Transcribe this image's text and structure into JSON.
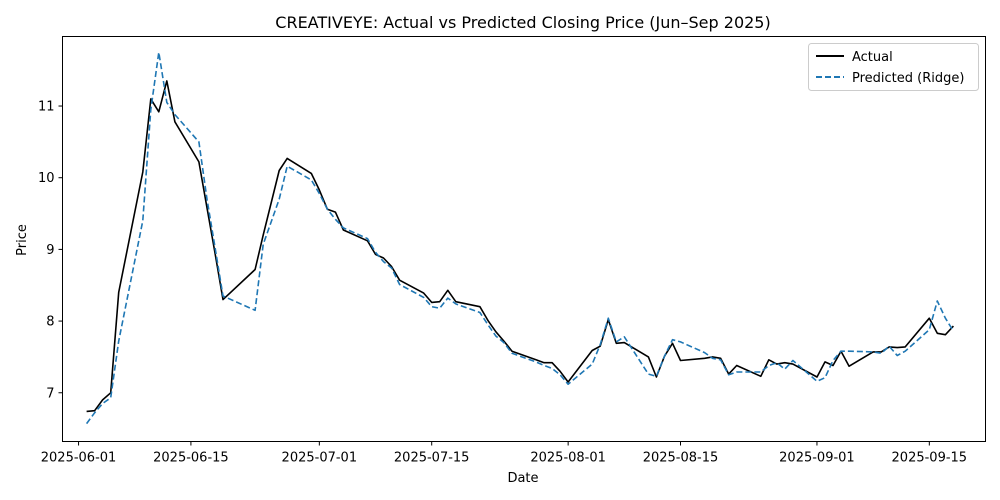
{
  "chart_data": {
    "type": "line",
    "title": "CREATIVEYE: Actual vs Predicted Closing Price (Jun–Sep 2025)",
    "xlabel": "Date",
    "ylabel": "Price",
    "x_axis_type": "date",
    "xlim": [
      "2025-05-30",
      "2025-09-22"
    ],
    "ylim": [
      6.32,
      11.97
    ],
    "x_ticks": [
      "2025-06-01",
      "2025-06-15",
      "2025-07-01",
      "2025-07-15",
      "2025-08-01",
      "2025-08-15",
      "2025-09-01",
      "2025-09-15"
    ],
    "y_ticks": [
      7,
      8,
      9,
      10,
      11
    ],
    "grid": false,
    "legend_position": "upper right",
    "series": [
      {
        "name": "Actual",
        "color": "#000000",
        "line_style": "solid",
        "points": [
          [
            "2025-06-02",
            6.74
          ],
          [
            "2025-06-03",
            6.75
          ],
          [
            "2025-06-04",
            6.9
          ],
          [
            "2025-06-05",
            7.0
          ],
          [
            "2025-06-06",
            8.4
          ],
          [
            "2025-06-09",
            10.08
          ],
          [
            "2025-06-10",
            11.1
          ],
          [
            "2025-06-11",
            10.92
          ],
          [
            "2025-06-12",
            11.35
          ],
          [
            "2025-06-13",
            10.78
          ],
          [
            "2025-06-16",
            10.22
          ],
          [
            "2025-06-17",
            9.58
          ],
          [
            "2025-06-18",
            8.95
          ],
          [
            "2025-06-19",
            8.3
          ],
          [
            "2025-06-23",
            8.72
          ],
          [
            "2025-06-24",
            9.2
          ],
          [
            "2025-06-26",
            10.1
          ],
          [
            "2025-06-27",
            10.27
          ],
          [
            "2025-06-30",
            10.06
          ],
          [
            "2025-07-01",
            9.83
          ],
          [
            "2025-07-02",
            9.56
          ],
          [
            "2025-07-03",
            9.52
          ],
          [
            "2025-07-04",
            9.27
          ],
          [
            "2025-07-07",
            9.12
          ],
          [
            "2025-07-08",
            8.93
          ],
          [
            "2025-07-09",
            8.88
          ],
          [
            "2025-07-10",
            8.76
          ],
          [
            "2025-07-11",
            8.57
          ],
          [
            "2025-07-14",
            8.39
          ],
          [
            "2025-07-15",
            8.26
          ],
          [
            "2025-07-16",
            8.27
          ],
          [
            "2025-07-17",
            8.43
          ],
          [
            "2025-07-18",
            8.27
          ],
          [
            "2025-07-21",
            8.2
          ],
          [
            "2025-07-22",
            8.01
          ],
          [
            "2025-07-23",
            7.85
          ],
          [
            "2025-07-24",
            7.72
          ],
          [
            "2025-07-25",
            7.58
          ],
          [
            "2025-07-28",
            7.46
          ],
          [
            "2025-07-29",
            7.42
          ],
          [
            "2025-07-30",
            7.42
          ],
          [
            "2025-07-31",
            7.3
          ],
          [
            "2025-08-01",
            7.15
          ],
          [
            "2025-08-04",
            7.59
          ],
          [
            "2025-08-05",
            7.65
          ],
          [
            "2025-08-06",
            8.02
          ],
          [
            "2025-08-07",
            7.69
          ],
          [
            "2025-08-08",
            7.7
          ],
          [
            "2025-08-11",
            7.5
          ],
          [
            "2025-08-12",
            7.22
          ],
          [
            "2025-08-13",
            7.51
          ],
          [
            "2025-08-14",
            7.69
          ],
          [
            "2025-08-15",
            7.45
          ],
          [
            "2025-08-18",
            7.48
          ],
          [
            "2025-08-19",
            7.5
          ],
          [
            "2025-08-20",
            7.48
          ],
          [
            "2025-08-21",
            7.26
          ],
          [
            "2025-08-22",
            7.38
          ],
          [
            "2025-08-25",
            7.23
          ],
          [
            "2025-08-26",
            7.46
          ],
          [
            "2025-08-27",
            7.4
          ],
          [
            "2025-08-28",
            7.42
          ],
          [
            "2025-08-29",
            7.4
          ],
          [
            "2025-09-01",
            7.22
          ],
          [
            "2025-09-02",
            7.43
          ],
          [
            "2025-09-03",
            7.38
          ],
          [
            "2025-09-04",
            7.58
          ],
          [
            "2025-09-05",
            7.37
          ],
          [
            "2025-09-08",
            7.57
          ],
          [
            "2025-09-09",
            7.57
          ],
          [
            "2025-09-10",
            7.64
          ],
          [
            "2025-09-11",
            7.63
          ],
          [
            "2025-09-12",
            7.64
          ],
          [
            "2025-09-15",
            8.04
          ],
          [
            "2025-09-16",
            7.83
          ],
          [
            "2025-09-17",
            7.81
          ],
          [
            "2025-09-18",
            7.93
          ]
        ]
      },
      {
        "name": "Predicted (Ridge)",
        "color": "#1f77b4",
        "line_style": "dashed",
        "points": [
          [
            "2025-06-02",
            6.57
          ],
          [
            "2025-06-03",
            6.72
          ],
          [
            "2025-06-04",
            6.85
          ],
          [
            "2025-06-05",
            6.93
          ],
          [
            "2025-06-06",
            7.72
          ],
          [
            "2025-06-09",
            9.4
          ],
          [
            "2025-06-10",
            10.95
          ],
          [
            "2025-06-11",
            11.75
          ],
          [
            "2025-06-12",
            11.05
          ],
          [
            "2025-06-13",
            10.88
          ],
          [
            "2025-06-16",
            10.5
          ],
          [
            "2025-06-17",
            9.7
          ],
          [
            "2025-06-18",
            9.03
          ],
          [
            "2025-06-19",
            8.35
          ],
          [
            "2025-06-23",
            8.15
          ],
          [
            "2025-06-24",
            9.07
          ],
          [
            "2025-06-26",
            9.7
          ],
          [
            "2025-06-27",
            10.16
          ],
          [
            "2025-06-30",
            9.97
          ],
          [
            "2025-07-01",
            9.78
          ],
          [
            "2025-07-02",
            9.56
          ],
          [
            "2025-07-03",
            9.42
          ],
          [
            "2025-07-04",
            9.3
          ],
          [
            "2025-07-07",
            9.15
          ],
          [
            "2025-07-08",
            8.96
          ],
          [
            "2025-07-09",
            8.83
          ],
          [
            "2025-07-10",
            8.74
          ],
          [
            "2025-07-11",
            8.51
          ],
          [
            "2025-07-14",
            8.33
          ],
          [
            "2025-07-15",
            8.2
          ],
          [
            "2025-07-16",
            8.18
          ],
          [
            "2025-07-17",
            8.32
          ],
          [
            "2025-07-18",
            8.24
          ],
          [
            "2025-07-21",
            8.12
          ],
          [
            "2025-07-22",
            7.95
          ],
          [
            "2025-07-23",
            7.79
          ],
          [
            "2025-07-24",
            7.7
          ],
          [
            "2025-07-25",
            7.55
          ],
          [
            "2025-07-28",
            7.43
          ],
          [
            "2025-07-29",
            7.38
          ],
          [
            "2025-07-30",
            7.34
          ],
          [
            "2025-07-31",
            7.25
          ],
          [
            "2025-08-01",
            7.12
          ],
          [
            "2025-08-04",
            7.4
          ],
          [
            "2025-08-05",
            7.67
          ],
          [
            "2025-08-06",
            8.04
          ],
          [
            "2025-08-07",
            7.71
          ],
          [
            "2025-08-08",
            7.78
          ],
          [
            "2025-08-11",
            7.26
          ],
          [
            "2025-08-12",
            7.23
          ],
          [
            "2025-08-13",
            7.51
          ],
          [
            "2025-08-14",
            7.74
          ],
          [
            "2025-08-15",
            7.71
          ],
          [
            "2025-08-18",
            7.56
          ],
          [
            "2025-08-19",
            7.48
          ],
          [
            "2025-08-20",
            7.46
          ],
          [
            "2025-08-21",
            7.25
          ],
          [
            "2025-08-22",
            7.29
          ],
          [
            "2025-08-25",
            7.29
          ],
          [
            "2025-08-26",
            7.38
          ],
          [
            "2025-08-27",
            7.42
          ],
          [
            "2025-08-28",
            7.33
          ],
          [
            "2025-08-29",
            7.45
          ],
          [
            "2025-09-01",
            7.16
          ],
          [
            "2025-09-02",
            7.21
          ],
          [
            "2025-09-03",
            7.45
          ],
          [
            "2025-09-04",
            7.58
          ],
          [
            "2025-09-05",
            7.58
          ],
          [
            "2025-09-08",
            7.57
          ],
          [
            "2025-09-09",
            7.55
          ],
          [
            "2025-09-10",
            7.65
          ],
          [
            "2025-09-11",
            7.52
          ],
          [
            "2025-09-12",
            7.58
          ],
          [
            "2025-09-15",
            7.88
          ],
          [
            "2025-09-16",
            8.28
          ],
          [
            "2025-09-17",
            8.04
          ],
          [
            "2025-09-18",
            7.86
          ]
        ]
      }
    ]
  }
}
